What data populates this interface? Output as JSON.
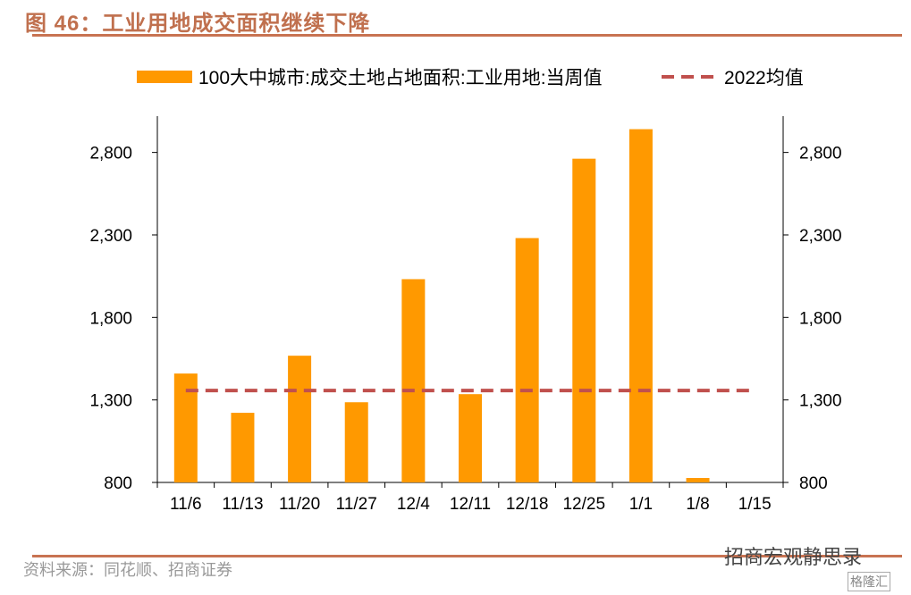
{
  "title": "图 46：工业用地成交面积继续下降",
  "source": "资料来源：同花顺、招商证券",
  "watermark": "招商宏观静思录",
  "watermark2": "格隆汇",
  "colors": {
    "bar": "#ff9900",
    "avg": "#c0504d",
    "title": "#c0704e"
  },
  "chart_data": {
    "type": "bar",
    "title": "工业用地成交面积继续下降",
    "categories": [
      "11/6",
      "11/13",
      "11/20",
      "11/27",
      "12/4",
      "12/11",
      "12/18",
      "12/25",
      "1/1",
      "1/8",
      "1/15"
    ],
    "series": [
      {
        "name": "100大中城市:成交土地占地面积:工业用地:当周值",
        "type": "bar",
        "values": [
          1460,
          1222,
          1568,
          1286,
          2032,
          1335,
          2281,
          2762,
          2941,
          827,
          null
        ]
      },
      {
        "name": "2022均值",
        "type": "line-dashed",
        "values": [
          1357,
          1357,
          1357,
          1357,
          1357,
          1357,
          1357,
          1357,
          1357,
          1357,
          1357
        ]
      }
    ],
    "yticks": [
      800,
      1300,
      1800,
      2300,
      2800
    ],
    "ytick_labels": [
      "800",
      "1,300",
      "1,800",
      "2,300",
      "2,800"
    ],
    "ylim": [
      800,
      3020
    ],
    "legend": "top-center",
    "grid": false
  }
}
